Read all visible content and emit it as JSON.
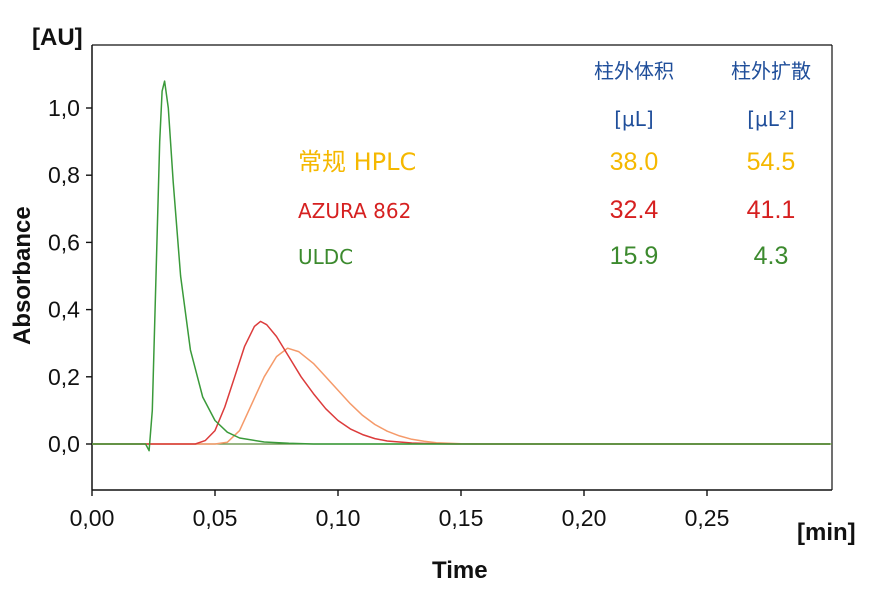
{
  "colors": {
    "header": "#1f4e9a",
    "conventional": "#f5b800",
    "azura": "#d62020",
    "uldc": "#3c8a2e",
    "orange_curve": "#f59a6a",
    "red_curve": "#dc3b3b",
    "green_curve": "#3a9a3a",
    "axis": "#111111"
  },
  "chart_data": {
    "type": "line",
    "xlabel": "Time",
    "ylabel": "Absorbance",
    "x_unit": "[min]",
    "y_unit": "[AU]",
    "xlim": [
      0,
      0.3
    ],
    "ylim": [
      -0.13,
      1.2
    ],
    "x_ticks": [
      "0,00",
      "0,05",
      "0,10",
      "0,15",
      "0,20",
      "0,25"
    ],
    "y_ticks": [
      "0,0",
      "0,2",
      "0,4",
      "0,6",
      "0,8",
      "1,0"
    ],
    "grid": false,
    "series": [
      {
        "name": "ULDC",
        "color": "#3a9a3a",
        "points": [
          [
            0.0,
            0.0
          ],
          [
            0.0218,
            0.0
          ],
          [
            0.0232,
            -0.02
          ],
          [
            0.0245,
            0.1
          ],
          [
            0.026,
            0.5
          ],
          [
            0.0275,
            0.9
          ],
          [
            0.0285,
            1.05
          ],
          [
            0.0295,
            1.08
          ],
          [
            0.031,
            1.0
          ],
          [
            0.033,
            0.78
          ],
          [
            0.036,
            0.5
          ],
          [
            0.04,
            0.28
          ],
          [
            0.045,
            0.14
          ],
          [
            0.05,
            0.07
          ],
          [
            0.055,
            0.035
          ],
          [
            0.06,
            0.018
          ],
          [
            0.07,
            0.006
          ],
          [
            0.08,
            0.002
          ],
          [
            0.09,
            0.0
          ],
          [
            0.3,
            0.0
          ]
        ]
      },
      {
        "name": "AZURA 862",
        "color": "#dc3b3b",
        "points": [
          [
            0.0,
            0.0
          ],
          [
            0.042,
            0.0
          ],
          [
            0.046,
            0.01
          ],
          [
            0.05,
            0.04
          ],
          [
            0.054,
            0.11
          ],
          [
            0.058,
            0.2
          ],
          [
            0.062,
            0.29
          ],
          [
            0.066,
            0.35
          ],
          [
            0.0685,
            0.365
          ],
          [
            0.071,
            0.355
          ],
          [
            0.075,
            0.32
          ],
          [
            0.08,
            0.26
          ],
          [
            0.085,
            0.2
          ],
          [
            0.09,
            0.15
          ],
          [
            0.095,
            0.105
          ],
          [
            0.1,
            0.07
          ],
          [
            0.105,
            0.045
          ],
          [
            0.11,
            0.028
          ],
          [
            0.115,
            0.016
          ],
          [
            0.12,
            0.009
          ],
          [
            0.13,
            0.003
          ],
          [
            0.14,
            0.001
          ],
          [
            0.148,
            0.0
          ],
          [
            0.3,
            0.0
          ]
        ]
      },
      {
        "name": "常规 HPLC",
        "color": "#f59a6a",
        "points": [
          [
            0.0,
            0.0
          ],
          [
            0.05,
            0.0
          ],
          [
            0.055,
            0.005
          ],
          [
            0.06,
            0.04
          ],
          [
            0.065,
            0.12
          ],
          [
            0.07,
            0.2
          ],
          [
            0.075,
            0.26
          ],
          [
            0.0795,
            0.285
          ],
          [
            0.084,
            0.275
          ],
          [
            0.09,
            0.24
          ],
          [
            0.095,
            0.2
          ],
          [
            0.1,
            0.16
          ],
          [
            0.105,
            0.12
          ],
          [
            0.11,
            0.085
          ],
          [
            0.115,
            0.058
          ],
          [
            0.12,
            0.038
          ],
          [
            0.125,
            0.024
          ],
          [
            0.13,
            0.014
          ],
          [
            0.135,
            0.008
          ],
          [
            0.14,
            0.004
          ],
          [
            0.15,
            0.001
          ],
          [
            0.16,
            0.0
          ],
          [
            0.3,
            0.0
          ]
        ]
      }
    ]
  },
  "legend_table": {
    "col1_header": "柱外体积",
    "col2_header": "柱外扩散",
    "col1_unit": "[μL]",
    "col2_unit": "[μL²]",
    "rows": [
      {
        "label": "常规 HPLC",
        "v1": "38.0",
        "v2": "54.5",
        "color": "#f5b800"
      },
      {
        "label": "AZURA 862",
        "v1": "32.4",
        "v2": "41.1",
        "color": "#d62020"
      },
      {
        "label": "ULDC",
        "v1": "15.9",
        "v2": "4.3",
        "color": "#3c8a2e"
      }
    ]
  }
}
